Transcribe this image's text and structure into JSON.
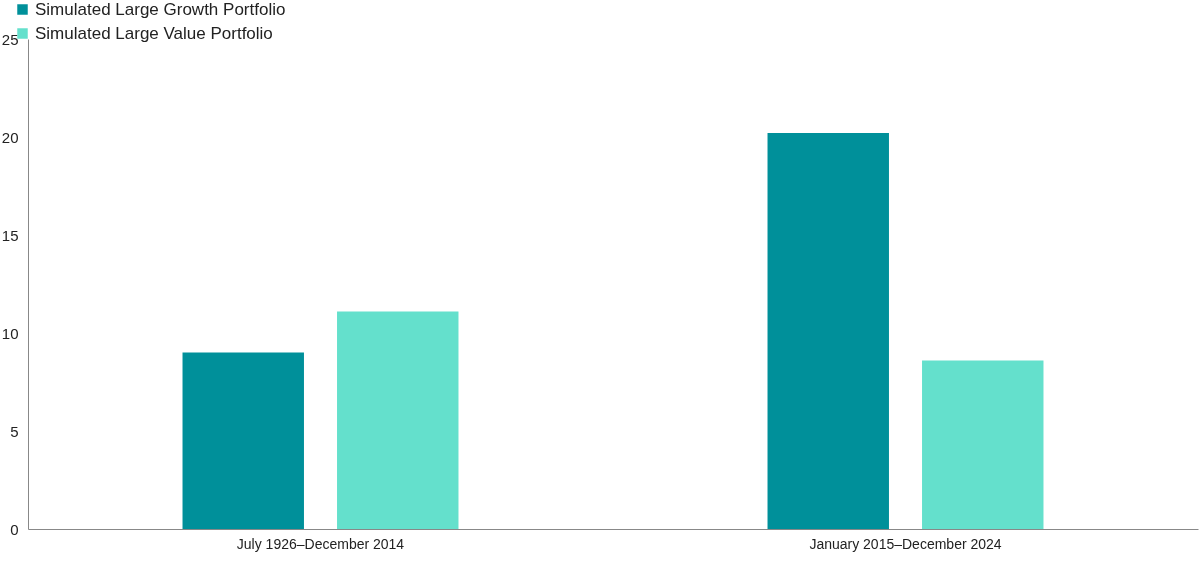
{
  "chart_data": {
    "type": "bar",
    "categories": [
      "July 1926–December 2014",
      "January 2015–December 2024"
    ],
    "series": [
      {
        "name": "Simulated Large Growth Portfolio",
        "color": "#00909a",
        "values": [
          9.0,
          20.2
        ]
      },
      {
        "name": "Simulated Large Value Portfolio",
        "color": "#64e0cc",
        "values": [
          11.1,
          8.6
        ]
      }
    ],
    "ylim": [
      0,
      25
    ],
    "yticks": [
      0,
      5,
      10,
      15,
      20,
      25
    ],
    "grid": false,
    "legend": "top left"
  }
}
